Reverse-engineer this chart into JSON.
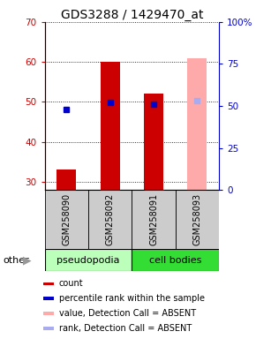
{
  "title": "GDS3288 / 1429470_at",
  "ylim_left": [
    28,
    70
  ],
  "ylim_right": [
    0,
    100
  ],
  "yticks_left": [
    30,
    40,
    50,
    60,
    70
  ],
  "yticks_right": [
    0,
    25,
    50,
    75,
    100
  ],
  "samples": [
    "GSM258090",
    "GSM258092",
    "GSM258091",
    "GSM258093"
  ],
  "groups": [
    "pseudopodia",
    "pseudopodia",
    "cell bodies",
    "cell bodies"
  ],
  "group_colors": {
    "pseudopodia": "#bbffbb",
    "cell bodies": "#33dd33"
  },
  "bars": [
    {
      "x": 0,
      "count": 33,
      "rank": 48,
      "absent_value": null,
      "absent_rank": null
    },
    {
      "x": 1,
      "count": 60,
      "rank": 52,
      "absent_value": null,
      "absent_rank": null
    },
    {
      "x": 2,
      "count": 52,
      "rank": 51,
      "absent_value": null,
      "absent_rank": null
    },
    {
      "x": 3,
      "count": null,
      "rank": null,
      "absent_value": 61,
      "absent_rank": 53
    }
  ],
  "bar_width": 0.45,
  "rank_marker_size": 5,
  "legend_items": [
    {
      "color": "#cc0000",
      "label": "count"
    },
    {
      "color": "#0000cc",
      "label": "percentile rank within the sample"
    },
    {
      "color": "#ffaaaa",
      "label": "value, Detection Call = ABSENT"
    },
    {
      "color": "#aaaaee",
      "label": "rank, Detection Call = ABSENT"
    }
  ],
  "other_label": "other",
  "bg_color": "#ffffff",
  "title_fontsize": 10,
  "tick_fontsize": 7.5,
  "legend_fontsize": 7
}
